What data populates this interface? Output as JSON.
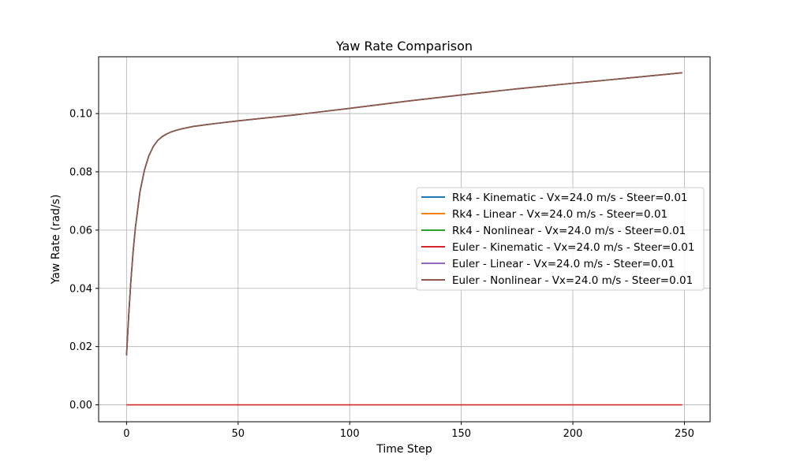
{
  "chart_data": {
    "type": "line",
    "title": "Yaw Rate Comparison",
    "xlabel": "Time Step",
    "ylabel": "Yaw Rate (rad/s)",
    "xlim": [
      -12.5,
      261.5
    ],
    "ylim": [
      -0.0058,
      0.1195
    ],
    "xticks": [
      0,
      50,
      100,
      150,
      200,
      250
    ],
    "yticks": [
      0.0,
      0.02,
      0.04,
      0.06,
      0.08,
      0.1
    ],
    "xtick_labels": [
      "0",
      "50",
      "100",
      "150",
      "200",
      "250"
    ],
    "ytick_labels": [
      "0.00",
      "0.02",
      "0.04",
      "0.06",
      "0.08",
      "0.10"
    ],
    "grid": true,
    "legend_position": "center-right",
    "x": [
      0,
      1,
      2,
      3,
      4,
      5,
      6,
      8,
      10,
      12,
      14,
      16,
      18,
      20,
      22,
      25,
      30,
      35,
      40,
      50,
      60,
      75,
      100,
      125,
      150,
      175,
      200,
      225,
      249
    ],
    "series": [
      {
        "name": "Rk4 - Kinematic - Vx=24.0 m/s - Steer=0.01",
        "color": "#1f77b4",
        "values": [
          0.017,
          0.031,
          0.043,
          0.053,
          0.061,
          0.067,
          0.073,
          0.0805,
          0.0855,
          0.0887,
          0.0908,
          0.0921,
          0.093,
          0.0937,
          0.0942,
          0.0948,
          0.0956,
          0.0961,
          0.0966,
          0.0975,
          0.0983,
          0.0995,
          0.1018,
          0.1042,
          0.1064,
          0.1085,
          0.1104,
          0.1122,
          0.114
        ]
      },
      {
        "name": "Rk4 - Linear - Vx=24.0 m/s - Steer=0.01",
        "color": "#ff7f0e",
        "values": [
          0.017,
          0.031,
          0.043,
          0.053,
          0.061,
          0.067,
          0.073,
          0.0805,
          0.0855,
          0.0887,
          0.0908,
          0.0921,
          0.093,
          0.0937,
          0.0942,
          0.0948,
          0.0956,
          0.0961,
          0.0966,
          0.0975,
          0.0983,
          0.0995,
          0.1018,
          0.1042,
          0.1064,
          0.1085,
          0.1104,
          0.1122,
          0.114
        ]
      },
      {
        "name": "Rk4 - Nonlinear - Vx=24.0 m/s - Steer=0.01",
        "color": "#2ca02c",
        "values": [
          0.017,
          0.031,
          0.043,
          0.053,
          0.061,
          0.067,
          0.073,
          0.0805,
          0.0855,
          0.0887,
          0.0908,
          0.0921,
          0.093,
          0.0937,
          0.0942,
          0.0948,
          0.0956,
          0.0961,
          0.0966,
          0.0975,
          0.0983,
          0.0995,
          0.1018,
          0.1042,
          0.1064,
          0.1085,
          0.1104,
          0.1122,
          0.114
        ]
      },
      {
        "name": "Euler - Kinematic - Vx=24.0 m/s - Steer=0.01",
        "color": "#d62728",
        "values": [
          0,
          0,
          0,
          0,
          0,
          0,
          0,
          0,
          0,
          0,
          0,
          0,
          0,
          0,
          0,
          0,
          0,
          0,
          0,
          0,
          0,
          0,
          0,
          0,
          0,
          0,
          0,
          0,
          0
        ]
      },
      {
        "name": "Euler - Linear - Vx=24.0 m/s - Steer=0.01",
        "color": "#9467bd",
        "values": [
          0.017,
          0.031,
          0.043,
          0.053,
          0.061,
          0.067,
          0.073,
          0.0805,
          0.0855,
          0.0887,
          0.0908,
          0.0921,
          0.093,
          0.0937,
          0.0942,
          0.0948,
          0.0956,
          0.0961,
          0.0966,
          0.0975,
          0.0983,
          0.0995,
          0.1018,
          0.1042,
          0.1064,
          0.1085,
          0.1104,
          0.1122,
          0.114
        ]
      },
      {
        "name": "Euler - Nonlinear - Vx=24.0 m/s - Steer=0.01",
        "color": "#8c564b",
        "values": [
          0.017,
          0.031,
          0.043,
          0.053,
          0.061,
          0.067,
          0.073,
          0.0805,
          0.0855,
          0.0887,
          0.0908,
          0.0921,
          0.093,
          0.0937,
          0.0942,
          0.0948,
          0.0956,
          0.0961,
          0.0966,
          0.0975,
          0.0983,
          0.0995,
          0.1018,
          0.1042,
          0.1064,
          0.1085,
          0.1104,
          0.1122,
          0.114
        ]
      }
    ]
  }
}
